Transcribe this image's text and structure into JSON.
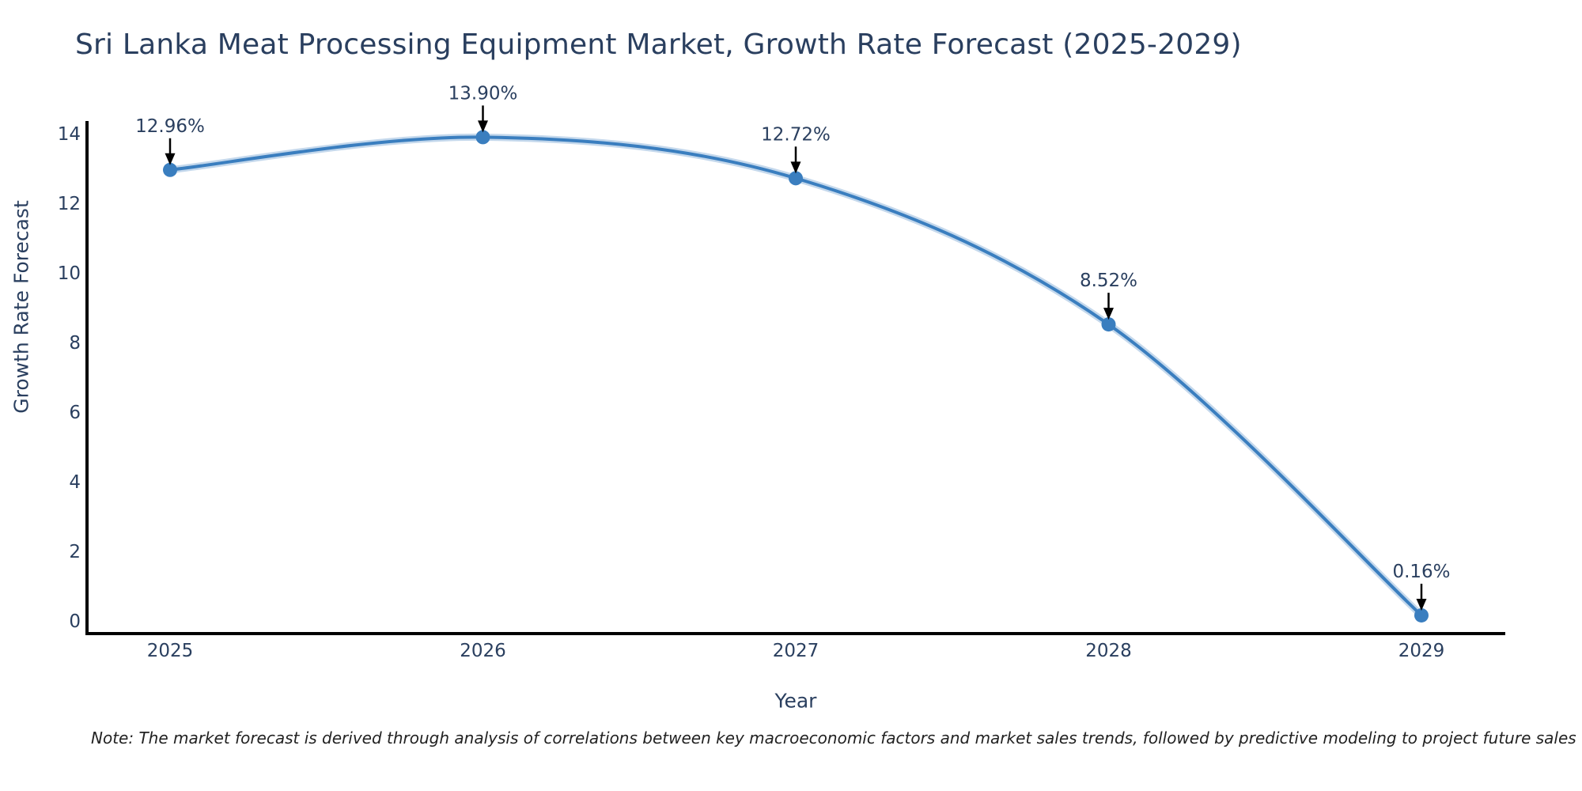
{
  "title": "Sri Lanka Meat Processing Equipment Market, Growth Rate Forecast (2025-2029)",
  "note": "Note: The market forecast is derived through analysis of correlations between key macroeconomic factors and market sales trends, followed by predictive modeling to project future sales",
  "colors": {
    "line": "#3a7ebf",
    "marker": "#3a7ebf",
    "title": "#2a3f5f",
    "tick_label": "#2a3f5f",
    "annotation_text": "#2a3f5f",
    "arrow": "#000000",
    "axis_line": "#000000",
    "note_text": "#222222",
    "background": "#ffffff"
  },
  "chart_data": {
    "type": "line",
    "title": "Sri Lanka Meat Processing Equipment Market, Growth Rate Forecast (2025-2029)",
    "xlabel": "Year",
    "ylabel": "Growth Rate Forecast",
    "x": [
      2025,
      2026,
      2027,
      2028,
      2029
    ],
    "values": [
      12.96,
      13.9,
      12.72,
      8.52,
      0.16
    ],
    "point_labels": [
      "12.96%",
      "13.90%",
      "12.72%",
      "8.52%",
      "0.16%"
    ],
    "y_ticks": [
      0,
      2,
      4,
      6,
      8,
      10,
      12,
      14
    ],
    "ylim": [
      0,
      14.5
    ],
    "grid": false,
    "legend": "none",
    "line_shape": "spline",
    "marker": "circle",
    "annotation_arrows": true
  }
}
